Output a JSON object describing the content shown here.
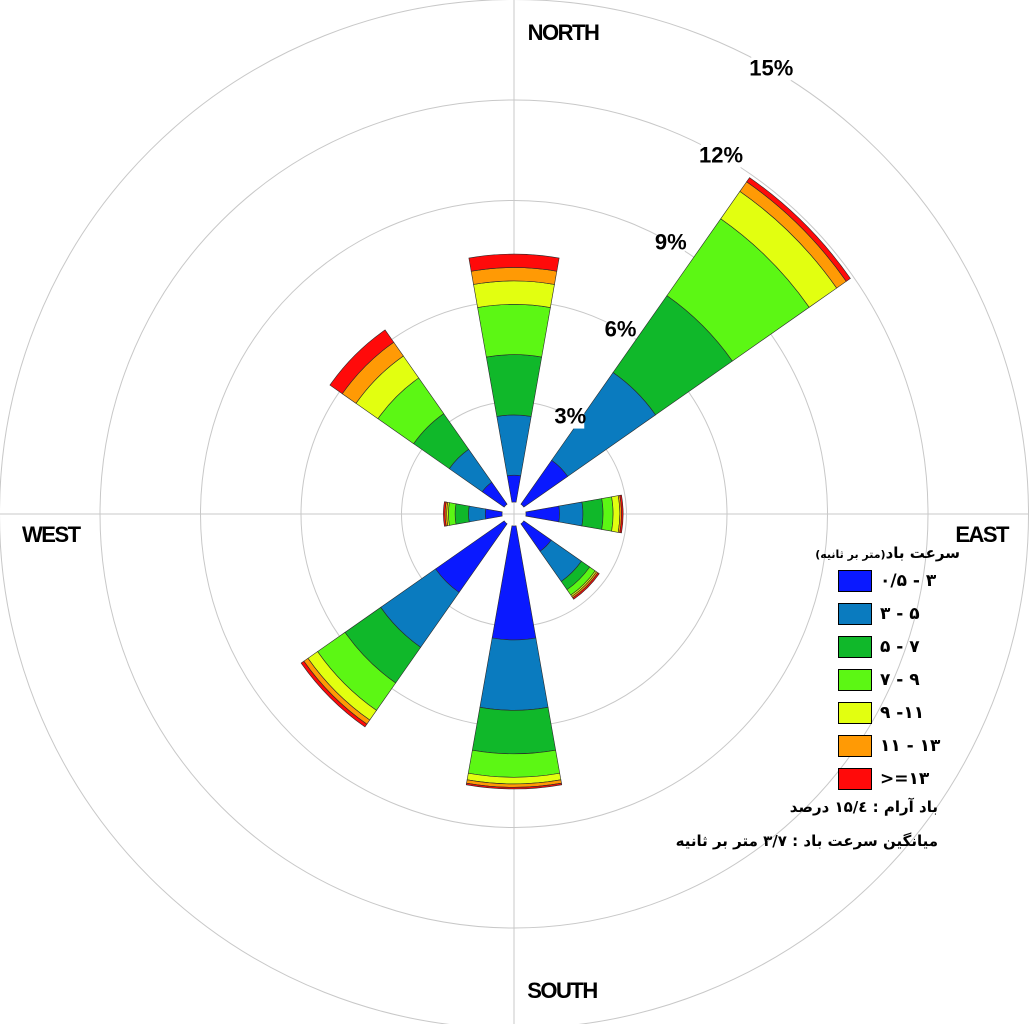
{
  "chart_data": {
    "type": "wind-rose",
    "direction_labels": {
      "north": "NORTH",
      "east": "EAST",
      "south": "SOUTH",
      "west": "WEST"
    },
    "ring_unit": "%",
    "rings": [
      3,
      6,
      9,
      12,
      15
    ],
    "ring_labels": [
      "3%",
      "6%",
      "9%",
      "12%",
      "15%"
    ],
    "max_percent": 15,
    "speed_bins": [
      {
        "label": "۰/۵ - ۳",
        "color": "#0a19ff"
      },
      {
        "label": "۳ - ۵",
        "color": "#0a7bbf"
      },
      {
        "label": "۵ - ۷",
        "color": "#10b82a"
      },
      {
        "label": "۷ - ۹",
        "color": "#5cf714"
      },
      {
        "label": "۹ -۱۱",
        "color": "#e2ff10"
      },
      {
        "label": "۱۱ - ۱۳",
        "color": "#ff9a05"
      },
      {
        "label": ">=۱۳",
        "color": "#ff0a0a"
      }
    ],
    "directions": [
      {
        "dir": "N",
        "cumulative": [
          0.8,
          2.6,
          4.4,
          5.9,
          6.6,
          7.0,
          7.4
        ]
      },
      {
        "dir": "NNE",
        "cumulative": [
          0.0,
          0.0,
          0.0,
          0.0,
          0.0,
          0.0,
          0.0
        ]
      },
      {
        "dir": "NE",
        "cumulative": [
          1.6,
          4.8,
          7.6,
          10.4,
          11.4,
          11.75,
          11.9
        ]
      },
      {
        "dir": "ENE",
        "cumulative": [
          0.0,
          0.0,
          0.0,
          0.0,
          0.0,
          0.0,
          0.0
        ]
      },
      {
        "dir": "E",
        "cumulative": [
          1.0,
          1.7,
          2.3,
          2.6,
          2.8,
          2.85,
          2.9
        ]
      },
      {
        "dir": "ESE",
        "cumulative": [
          0.0,
          0.0,
          0.0,
          0.0,
          0.0,
          0.0,
          0.0
        ]
      },
      {
        "dir": "SE",
        "cumulative": [
          1.0,
          2.1,
          2.4,
          2.6,
          2.65,
          2.7,
          2.75
        ]
      },
      {
        "dir": "SSE",
        "cumulative": [
          0.0,
          0.0,
          0.0,
          0.0,
          0.0,
          0.0,
          0.0
        ]
      },
      {
        "dir": "S",
        "cumulative": [
          3.4,
          5.5,
          6.8,
          7.5,
          7.7,
          7.8,
          7.85
        ]
      },
      {
        "dir": "SSW",
        "cumulative": [
          0.0,
          0.0,
          0.0,
          0.0,
          0.0,
          0.0,
          0.0
        ]
      },
      {
        "dir": "SW",
        "cumulative": [
          2.5,
          4.5,
          5.8,
          6.8,
          7.15,
          7.3,
          7.4
        ]
      },
      {
        "dir": "WSW",
        "cumulative": [
          0.0,
          0.0,
          0.0,
          0.0,
          0.0,
          0.0,
          0.0
        ]
      },
      {
        "dir": "W",
        "cumulative": [
          0.5,
          1.0,
          1.4,
          1.6,
          1.65,
          1.7,
          1.75
        ]
      },
      {
        "dir": "WNW",
        "cumulative": [
          0.0,
          0.0,
          0.0,
          0.0,
          0.0,
          0.0,
          0.0
        ]
      },
      {
        "dir": "NW",
        "cumulative": [
          0.8,
          2.0,
          3.3,
          4.6,
          5.4,
          5.9,
          6.35
        ]
      },
      {
        "dir": "NNW",
        "cumulative": [
          0.0,
          0.0,
          0.0,
          0.0,
          0.0,
          0.0,
          0.0
        ]
      }
    ]
  },
  "legend": {
    "title": "سرعت باد",
    "unit": "(متر بر ثانیه)"
  },
  "notes": {
    "calm": "باد آرام : ۱۵/٤ درصد",
    "mean_speed": "میانگین سرعت باد : ۳/۷ متر بر ثانیه"
  }
}
